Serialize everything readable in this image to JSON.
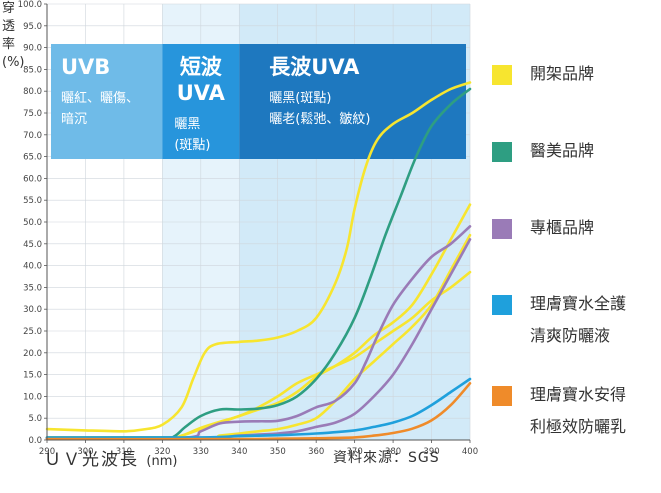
{
  "chart_data": {
    "type": "line",
    "ylabel": "穿\n透\n率\n(%)",
    "xlabel": "ＵＶ光波長",
    "xlabel_unit": "(nm)",
    "xlim": [
      290,
      400
    ],
    "ylim": [
      0,
      100
    ],
    "x_ticks": [
      "290",
      "300",
      "310",
      "320",
      "330",
      "340",
      "350",
      "360",
      "370",
      "380",
      "390",
      "400"
    ],
    "y_ticks": [
      "0.0",
      "5.0",
      "10.0",
      "15.0",
      "20.0",
      "25.0",
      "30.0",
      "35.0",
      "40.0",
      "45.0",
      "50.0",
      "55.0",
      "60.0",
      "65.0",
      "70.0",
      "75.0",
      "80.0",
      "85.0",
      "90.0",
      "95.0",
      "100.0"
    ],
    "bands": [
      {
        "name": "UVB",
        "x": [
          290,
          320
        ],
        "color": "#ffffff",
        "label_color": "#6fbbe8",
        "title": "UVB",
        "desc": "曬紅、曬傷、\n暗沉"
      },
      {
        "name": "短波UVA",
        "x": [
          320,
          340
        ],
        "color": "#e6f3fb",
        "label_color": "#2795dc",
        "title": "短波\nUVA",
        "desc": "曬黑\n(斑點)"
      },
      {
        "name": "長波UVA",
        "x": [
          340,
          400
        ],
        "color": "#d2eaf8",
        "label_color": "#1e78bf",
        "title": "長波UVA",
        "desc": "曬黑(斑點)\n曬老(鬆弛、皺紋)"
      }
    ],
    "series": [
      {
        "name": "開架品牌",
        "color": "#f7e52f",
        "points": [
          [
            290,
            2.5
          ],
          [
            300,
            2.2
          ],
          [
            310,
            2.0
          ],
          [
            315,
            2.4
          ],
          [
            320,
            3.5
          ],
          [
            325,
            7.5
          ],
          [
            328,
            14
          ],
          [
            331,
            20
          ],
          [
            334,
            22
          ],
          [
            340,
            22.5
          ],
          [
            345,
            22.8
          ],
          [
            350,
            23.5
          ],
          [
            355,
            25
          ],
          [
            360,
            28
          ],
          [
            365,
            36
          ],
          [
            368,
            44
          ],
          [
            370,
            53
          ],
          [
            373,
            63
          ],
          [
            376,
            69
          ],
          [
            380,
            72.5
          ],
          [
            385,
            75
          ],
          [
            390,
            78
          ],
          [
            395,
            80.5
          ],
          [
            400,
            82
          ]
        ]
      },
      {
        "name": "開架品牌",
        "color": "#f7e52f",
        "points": [
          [
            290,
            0.5
          ],
          [
            320,
            0.5
          ],
          [
            325,
            1.0
          ],
          [
            330,
            2.5
          ],
          [
            335,
            4
          ],
          [
            340,
            5.5
          ],
          [
            345,
            7
          ],
          [
            350,
            8.5
          ],
          [
            355,
            11
          ],
          [
            360,
            14.5
          ],
          [
            365,
            17
          ],
          [
            370,
            20
          ],
          [
            375,
            24
          ],
          [
            380,
            27
          ],
          [
            385,
            31
          ],
          [
            390,
            38
          ],
          [
            395,
            46
          ],
          [
            400,
            54
          ]
        ]
      },
      {
        "name": "開架品牌",
        "color": "#f7e52f",
        "points": [
          [
            290,
            0.4
          ],
          [
            320,
            0.4
          ],
          [
            325,
            1.0
          ],
          [
            330,
            2.8
          ],
          [
            335,
            4.2
          ],
          [
            340,
            5.5
          ],
          [
            345,
            7.5
          ],
          [
            350,
            10
          ],
          [
            355,
            13
          ],
          [
            360,
            15
          ],
          [
            365,
            17
          ],
          [
            370,
            19
          ],
          [
            375,
            22
          ],
          [
            380,
            25
          ],
          [
            385,
            28
          ],
          [
            390,
            32
          ],
          [
            395,
            35
          ],
          [
            400,
            38.5
          ]
        ]
      },
      {
        "name": "開架品牌",
        "color": "#f7e52f",
        "points": [
          [
            290,
            0.3
          ],
          [
            330,
            0.5
          ],
          [
            335,
            1.0
          ],
          [
            340,
            1.5
          ],
          [
            345,
            2
          ],
          [
            350,
            2.5
          ],
          [
            355,
            3.5
          ],
          [
            360,
            5
          ],
          [
            365,
            9
          ],
          [
            370,
            14
          ],
          [
            375,
            18
          ],
          [
            380,
            22
          ],
          [
            385,
            26
          ],
          [
            390,
            31
          ],
          [
            395,
            39
          ],
          [
            400,
            47
          ]
        ]
      },
      {
        "name": "醫美品牌",
        "color": "#2e9e82",
        "points": [
          [
            290,
            0.6
          ],
          [
            320,
            0.6
          ],
          [
            323,
            0.8
          ],
          [
            326,
            3
          ],
          [
            330,
            5.5
          ],
          [
            335,
            7
          ],
          [
            340,
            7
          ],
          [
            345,
            7.2
          ],
          [
            350,
            8
          ],
          [
            355,
            10
          ],
          [
            360,
            14
          ],
          [
            365,
            20
          ],
          [
            370,
            28
          ],
          [
            374,
            37
          ],
          [
            378,
            47
          ],
          [
            382,
            56
          ],
          [
            386,
            65
          ],
          [
            390,
            72
          ],
          [
            395,
            77
          ],
          [
            400,
            80.5
          ]
        ]
      },
      {
        "name": "專櫃品牌",
        "color": "#9a7bb7",
        "points": [
          [
            290,
            0.5
          ],
          [
            325,
            0.5
          ],
          [
            330,
            2
          ],
          [
            335,
            3.8
          ],
          [
            340,
            4.2
          ],
          [
            345,
            4.3
          ],
          [
            350,
            4.4
          ],
          [
            355,
            5.5
          ],
          [
            360,
            7.5
          ],
          [
            365,
            9
          ],
          [
            370,
            13
          ],
          [
            373,
            18
          ],
          [
            376,
            24
          ],
          [
            380,
            31
          ],
          [
            385,
            37
          ],
          [
            390,
            42
          ],
          [
            395,
            45
          ],
          [
            400,
            49
          ]
        ]
      },
      {
        "name": "專櫃品牌",
        "color": "#9a7bb7",
        "points": [
          [
            290,
            0.3
          ],
          [
            330,
            0.4
          ],
          [
            340,
            1.0
          ],
          [
            350,
            1.5
          ],
          [
            355,
            2
          ],
          [
            360,
            3
          ],
          [
            365,
            4
          ],
          [
            370,
            6
          ],
          [
            375,
            10
          ],
          [
            380,
            15
          ],
          [
            385,
            22
          ],
          [
            390,
            30
          ],
          [
            395,
            38
          ],
          [
            400,
            46
          ]
        ]
      },
      {
        "name": "理膚寶水全護清爽防曬液",
        "color": "#1fa0dc",
        "points": [
          [
            290,
            0.5
          ],
          [
            330,
            0.6
          ],
          [
            340,
            0.9
          ],
          [
            350,
            1.1
          ],
          [
            360,
            1.5
          ],
          [
            370,
            2.2
          ],
          [
            375,
            3
          ],
          [
            380,
            4
          ],
          [
            385,
            5.5
          ],
          [
            390,
            8
          ],
          [
            395,
            11
          ],
          [
            400,
            14
          ]
        ]
      },
      {
        "name": "理膚寶水安得利極效防曬乳",
        "color": "#ef8b2a",
        "points": [
          [
            290,
            0.2
          ],
          [
            340,
            0.2
          ],
          [
            350,
            0.3
          ],
          [
            360,
            0.4
          ],
          [
            370,
            0.6
          ],
          [
            375,
            1.0
          ],
          [
            380,
            1.6
          ],
          [
            385,
            2.6
          ],
          [
            390,
            4.5
          ],
          [
            395,
            8
          ],
          [
            400,
            13
          ]
        ]
      }
    ]
  },
  "legend": [
    {
      "label": "開架品牌",
      "color": "#f7e52f"
    },
    {
      "label": "醫美品牌",
      "color": "#2e9e82"
    },
    {
      "label": "專櫃品牌",
      "color": "#9a7bb7"
    },
    {
      "label": "理膚寶水全護\n清爽防曬液",
      "color": "#1fa0dc"
    },
    {
      "label": "理膚寶水安得\n利極效防曬乳",
      "color": "#ef8b2a"
    }
  ],
  "source": "資料來源：SGS"
}
